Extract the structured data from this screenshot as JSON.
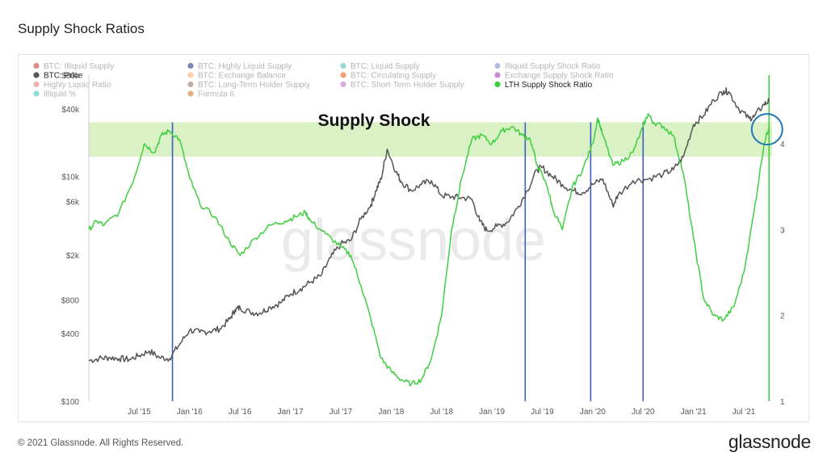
{
  "page": {
    "title": "Supply Shock Ratios",
    "copyright": "© 2021 Glassnode. All Rights Reserved.",
    "brand": "glassnode",
    "watermark": "glassnode"
  },
  "legend": [
    {
      "label": "BTC: Illiquid Supply",
      "color": "#c62828",
      "dim": true
    },
    {
      "label": "BTC: Price",
      "color": "#555555",
      "dim": false
    },
    {
      "label": "Highly Liquid Ratio",
      "color": "#e57373",
      "dim": true
    },
    {
      "label": "Illiquid %",
      "color": "#26c6b9",
      "dim": true
    },
    {
      "label": "BTC: Highly Liquid Supply",
      "color": "#1a237e",
      "dim": true
    },
    {
      "label": "BTC: Exchange Balance",
      "color": "#f4a460",
      "dim": true
    },
    {
      "label": "BTC: Long-Term Holder Supply",
      "color": "#8d6e63",
      "dim": true
    },
    {
      "label": "Formula 6",
      "color": "#d2691e",
      "dim": true
    },
    {
      "label": "BTC: Liquid Supply",
      "color": "#4db6ac",
      "dim": true
    },
    {
      "label": "BTC: Circulating Supply",
      "color": "#e65100",
      "dim": true
    },
    {
      "label": "BTC: Short-Term Holder Supply",
      "color": "#ba68c8",
      "dim": true
    },
    {
      "label": "Illiquid Supply Shock Ratio",
      "color": "#7986cb",
      "dim": true
    },
    {
      "label": "Exchange Supply Shock Ratio",
      "color": "#9c27b0",
      "dim": true
    },
    {
      "label": "LTH Supply Shock Ratio",
      "color": "#3ecf3e",
      "dim": false
    }
  ],
  "chart_data": {
    "type": "line",
    "annotation": "Supply Shock",
    "x_ticks": [
      "Jul '15",
      "Jan '16",
      "Jul '16",
      "Jan '17",
      "Jul '17",
      "Jan '18",
      "Jul '18",
      "Jan '19",
      "Jul '19",
      "Jan '20",
      "Jul '20",
      "Jan '21",
      "Jul '21"
    ],
    "x_range": [
      2015.0,
      2021.78
    ],
    "y_left": {
      "scale": "log",
      "range": [
        100,
        80000
      ],
      "ticks": [
        100,
        400,
        800,
        2000,
        6000,
        10000,
        40000,
        80000
      ],
      "tick_labels": [
        "$100",
        "$400",
        "$800",
        "$2k",
        "$6k",
        "$10k",
        "$40k",
        "$80k"
      ]
    },
    "y_right": {
      "scale": "linear",
      "range": [
        1,
        4.8
      ],
      "ticks": [
        1,
        2,
        3,
        4
      ],
      "tick_labels": [
        "1",
        "2",
        "3",
        "4"
      ]
    },
    "shaded_band": {
      "axis": "right",
      "from": 3.85,
      "to": 4.25,
      "color": "#d5f0bf"
    },
    "vertical_markers": {
      "color": "#3b5fc0",
      "x": [
        2015.83,
        2019.33,
        2019.98,
        2020.5
      ]
    },
    "end_marker": {
      "color": "#3ecf3e",
      "x": 2021.75
    },
    "highlight_circle": {
      "x": 2021.73,
      "y_right": 4.15,
      "color": "#1f77b4"
    },
    "series": [
      {
        "name": "BTC: Price",
        "axis": "left",
        "color": "#555555",
        "x": [
          2015.0,
          2015.1,
          2015.2,
          2015.3,
          2015.4,
          2015.5,
          2015.6,
          2015.7,
          2015.8,
          2015.9,
          2016.0,
          2016.1,
          2016.2,
          2016.3,
          2016.4,
          2016.45,
          2016.5,
          2016.6,
          2016.7,
          2016.8,
          2016.9,
          2017.0,
          2017.1,
          2017.2,
          2017.3,
          2017.4,
          2017.5,
          2017.6,
          2017.7,
          2017.8,
          2017.85,
          2017.9,
          2017.96,
          2018.05,
          2018.1,
          2018.2,
          2018.3,
          2018.4,
          2018.5,
          2018.6,
          2018.7,
          2018.8,
          2018.88,
          2018.95,
          2019.05,
          2019.15,
          2019.25,
          2019.35,
          2019.45,
          2019.5,
          2019.6,
          2019.7,
          2019.8,
          2019.9,
          2020.0,
          2020.1,
          2020.2,
          2020.25,
          2020.4,
          2020.55,
          2020.7,
          2020.8,
          2020.9,
          2021.0,
          2021.1,
          2021.2,
          2021.3,
          2021.35,
          2021.45,
          2021.55,
          2021.6,
          2021.7,
          2021.75
        ],
        "values": [
          230,
          240,
          245,
          240,
          235,
          255,
          280,
          245,
          240,
          320,
          430,
          410,
          420,
          440,
          540,
          650,
          680,
          620,
          610,
          690,
          750,
          900,
          1000,
          1150,
          1300,
          1900,
          2500,
          2700,
          4200,
          5600,
          7500,
          9500,
          17500,
          11000,
          9000,
          7500,
          8500,
          9200,
          6800,
          6600,
          6500,
          6300,
          4000,
          3300,
          3600,
          3900,
          5200,
          7500,
          11500,
          12000,
          10000,
          8500,
          7500,
          7200,
          8500,
          9500,
          5500,
          6800,
          9200,
          9500,
          10500,
          11500,
          15000,
          29000,
          35000,
          48000,
          58000,
          57000,
          40000,
          33000,
          34000,
          44000,
          47000
        ]
      },
      {
        "name": "LTH Supply Shock Ratio",
        "axis": "right",
        "color": "#3ecf3e",
        "x": [
          2015.0,
          2015.08,
          2015.15,
          2015.3,
          2015.45,
          2015.55,
          2015.65,
          2015.72,
          2015.8,
          2015.9,
          2016.0,
          2016.1,
          2016.25,
          2016.4,
          2016.5,
          2016.65,
          2016.8,
          2016.95,
          2017.05,
          2017.15,
          2017.2,
          2017.35,
          2017.5,
          2017.6,
          2017.7,
          2017.8,
          2017.9,
          2018.0,
          2018.1,
          2018.2,
          2018.3,
          2018.4,
          2018.5,
          2018.6,
          2018.7,
          2018.8,
          2018.9,
          2019.0,
          2019.1,
          2019.2,
          2019.3,
          2019.38,
          2019.45,
          2019.55,
          2019.6,
          2019.7,
          2019.8,
          2019.9,
          2020.0,
          2020.05,
          2020.1,
          2020.2,
          2020.3,
          2020.4,
          2020.5,
          2020.55,
          2020.6,
          2020.7,
          2020.8,
          2020.9,
          2021.0,
          2021.1,
          2021.2,
          2021.3,
          2021.4,
          2021.5,
          2021.6,
          2021.7,
          2021.75
        ],
        "values": [
          3.0,
          3.1,
          3.05,
          3.2,
          3.6,
          4.0,
          3.9,
          4.1,
          4.15,
          4.05,
          3.6,
          3.3,
          3.15,
          2.85,
          2.7,
          2.9,
          3.05,
          3.1,
          3.15,
          3.2,
          3.1,
          2.95,
          2.8,
          2.7,
          2.35,
          1.95,
          1.5,
          1.35,
          1.25,
          1.2,
          1.25,
          1.5,
          2.0,
          3.0,
          3.6,
          4.05,
          4.1,
          4.0,
          4.15,
          4.2,
          4.1,
          4.05,
          3.75,
          3.5,
          3.25,
          3.0,
          3.5,
          3.7,
          4.0,
          4.3,
          4.1,
          3.75,
          3.8,
          3.9,
          4.2,
          4.35,
          4.25,
          4.2,
          4.1,
          3.65,
          2.9,
          2.2,
          2.0,
          1.95,
          2.1,
          2.5,
          3.2,
          4.0,
          4.2
        ]
      }
    ]
  }
}
